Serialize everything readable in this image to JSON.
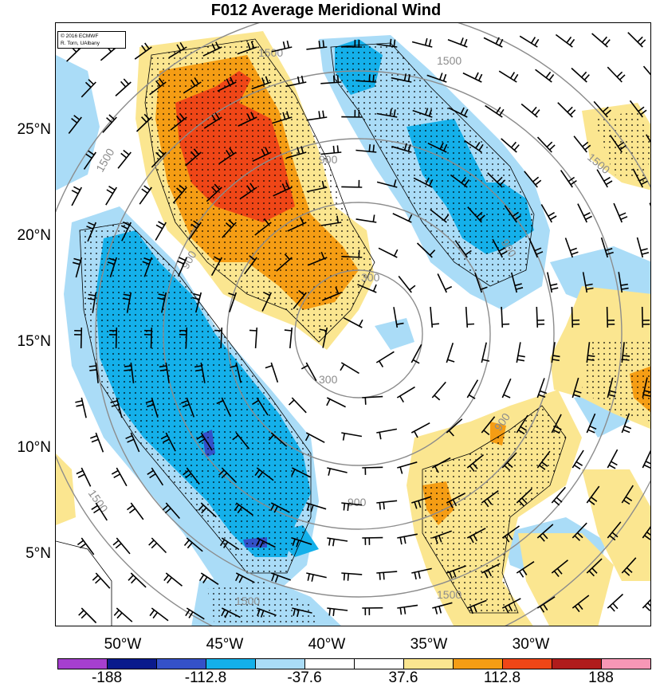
{
  "title": "F012 Average Meridional Wind",
  "credit": [
    "© 2016 ECMWF",
    "R. Torn, UAlbany"
  ],
  "lat_labels": [
    "25°N",
    "20°N",
    "15°N",
    "10°N",
    "5°N"
  ],
  "lon_labels": [
    "50°W",
    "45°W",
    "40°W",
    "35°W",
    "30°W"
  ],
  "contour_labels": [
    "1500",
    "1500",
    "1500",
    "1500",
    "1500",
    "1500",
    "1500",
    "900",
    "900",
    "900",
    "900",
    "900",
    "300",
    "300"
  ],
  "colorbar": {
    "colors": [
      "#a63fcf",
      "#0a1a8c",
      "#3451c9",
      "#14b0ea",
      "#aadcf7",
      "#ffffff",
      "#ffffff",
      "#fbe690",
      "#f59d14",
      "#ef4617",
      "#b01c1c",
      "#f797b6"
    ],
    "labels": [
      "-188",
      "-112.8",
      "-37.6",
      "37.6",
      "112.8",
      "188"
    ]
  }
}
